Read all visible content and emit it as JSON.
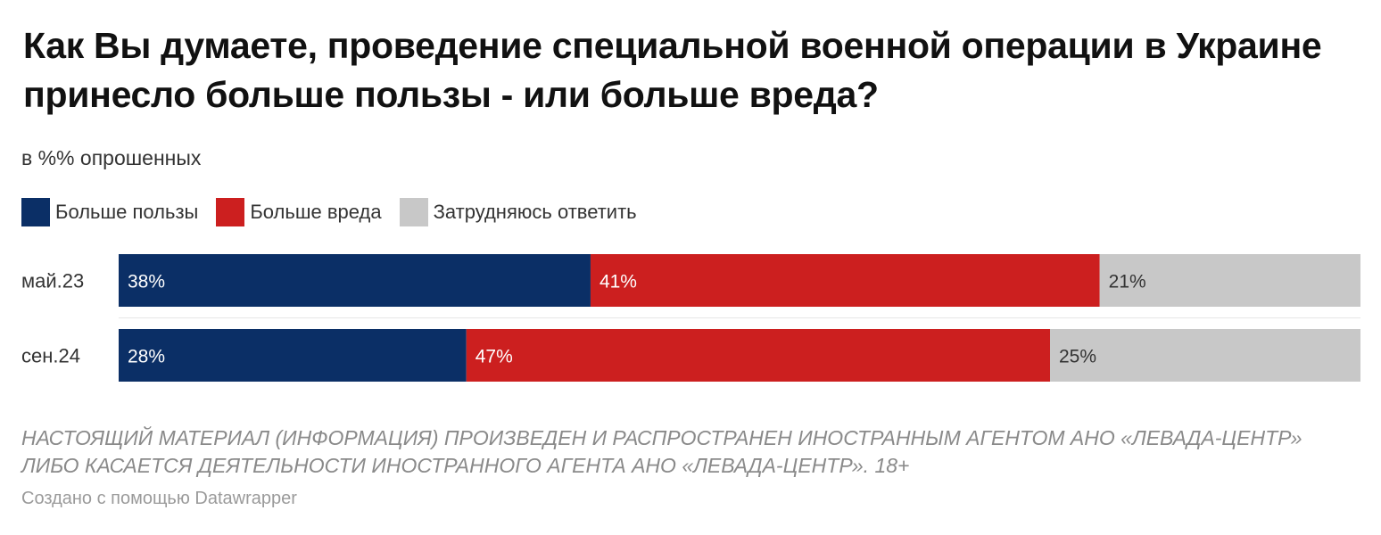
{
  "title": "Как Вы думаете, проведение специальной военной операции в Украине принесло больше пользы - или больше вреда?",
  "subtitle": "в %% опрошенных",
  "legend": [
    {
      "label": "Больше пользы",
      "color": "#0b2f66"
    },
    {
      "label": "Больше вреда",
      "color": "#cc1f1f"
    },
    {
      "label": "Затрудняюсь ответить",
      "color": "#c8c8c8"
    }
  ],
  "note": "НАСТОЯЩИЙ МАТЕРИАЛ (ИНФОРМАЦИЯ) ПРОИЗВЕДЕН И РАСПРОСТРАНЕН ИНОСТРАННЫМ АГЕНТОМ АНО «ЛЕВАДА-ЦЕНТР» ЛИБО КАСАЕТСЯ ДЕЯТЕЛЬНОСТИ ИНОСТРАННОГО АГЕНТА АНО «ЛЕВАДА-ЦЕНТР». 18+",
  "credit": "Создано с помощью Datawrapper",
  "chart_data": {
    "type": "bar",
    "orientation": "horizontal",
    "stacked": true,
    "value_suffix": "%",
    "xlim": [
      0,
      100
    ],
    "grid": false,
    "legend_position": "top-left",
    "categories": [
      "май.23",
      "сен.24"
    ],
    "series": [
      {
        "name": "Больше пользы",
        "color": "#0b2f66",
        "label_color": "#ffffff",
        "values": [
          38,
          28
        ]
      },
      {
        "name": "Больше вреда",
        "color": "#cc1f1f",
        "label_color": "#ffffff",
        "values": [
          41,
          47
        ]
      },
      {
        "name": "Затрудняюсь ответить",
        "color": "#c8c8c8",
        "label_color": "#333333",
        "values": [
          21,
          25
        ]
      }
    ]
  }
}
